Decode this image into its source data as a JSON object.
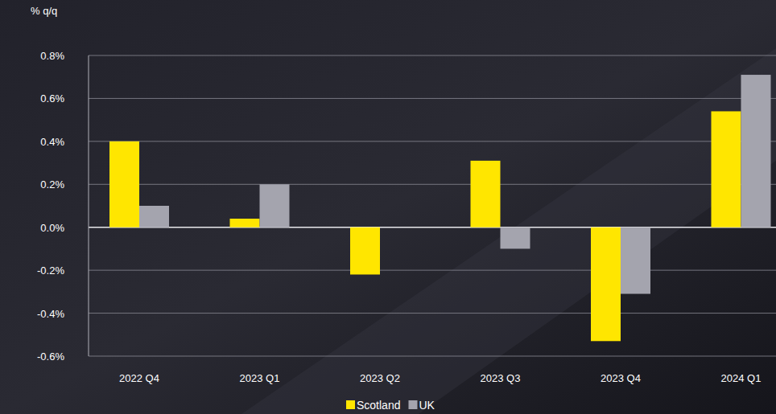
{
  "chart_data": {
    "type": "bar",
    "y_label": "% q/q",
    "categories": [
      "2022 Q4",
      "2023 Q1",
      "2023 Q2",
      "2023 Q3",
      "2023 Q4",
      "2024 Q1"
    ],
    "series": [
      {
        "name": "Scotland",
        "color": "#ffe600",
        "values": [
          0.4,
          0.04,
          -0.22,
          0.31,
          -0.53,
          0.54
        ]
      },
      {
        "name": "UK",
        "color": "#a4a4ae",
        "values": [
          0.1,
          0.2,
          0.0,
          -0.1,
          -0.31,
          0.71
        ]
      }
    ],
    "ylim": [
      -0.6,
      0.8
    ],
    "yticks": [
      {
        "value": -0.6,
        "label": "-0.6%"
      },
      {
        "value": -0.4,
        "label": "-0.4%"
      },
      {
        "value": -0.2,
        "label": "-0.2%"
      },
      {
        "value": 0,
        "label": "0.0%"
      },
      {
        "value": 0.2,
        "label": "0.2%"
      },
      {
        "value": 0.4,
        "label": "0.4%"
      },
      {
        "value": 0.6,
        "label": "0.6%"
      },
      {
        "value": 0.8,
        "label": "0.8%"
      }
    ],
    "grid": true,
    "legend": "bottom"
  }
}
